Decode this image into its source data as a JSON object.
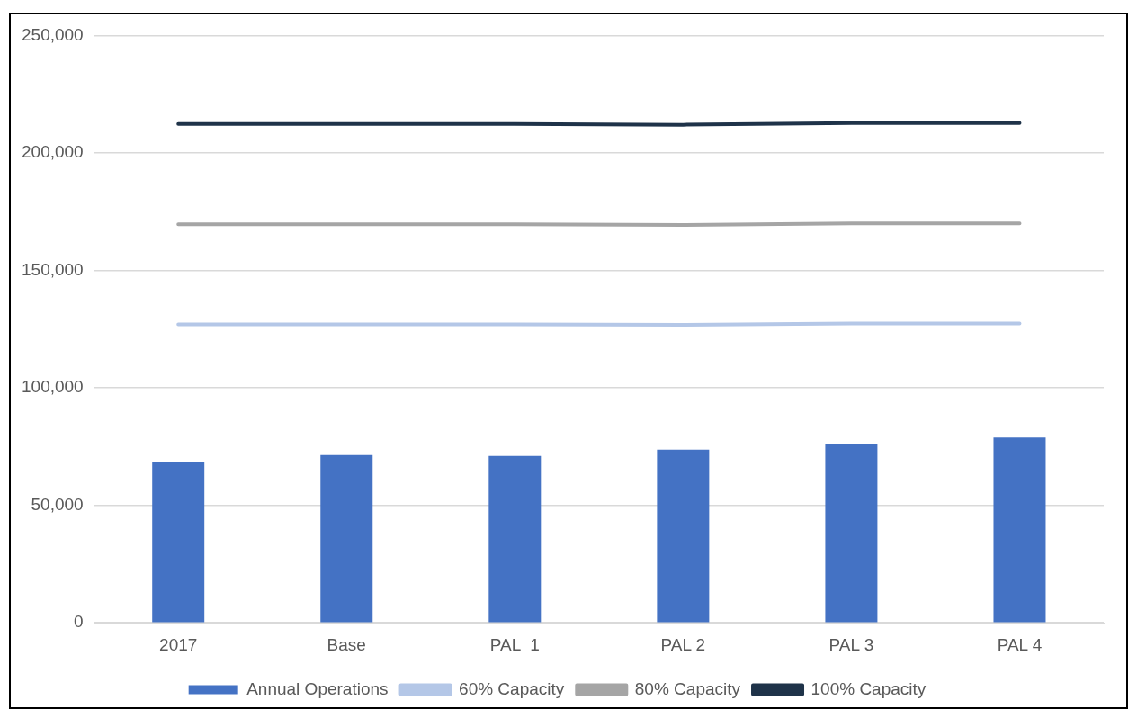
{
  "chart_data": {
    "type": "bar",
    "categories": [
      "2017",
      "Base",
      "PAL  1",
      "PAL 2",
      "PAL 3",
      "PAL 4"
    ],
    "series": [
      {
        "name": "Annual Operations",
        "color": "#4472c4",
        "values": [
          68600,
          71400,
          71000,
          73700,
          76100,
          78900
        ]
      },
      {
        "name": "60% Capacity",
        "type": "line",
        "color": "#b4c7e7",
        "values": [
          127000,
          127000,
          127000,
          126800,
          127400,
          127400
        ]
      },
      {
        "name": "80% Capacity",
        "type": "line",
        "color": "#a5a5a5",
        "values": [
          169600,
          169600,
          169600,
          169300,
          170000,
          170000
        ]
      },
      {
        "name": "100% Capacity",
        "type": "line",
        "color": "#1f3349",
        "values": [
          212300,
          212300,
          212300,
          212000,
          212700,
          212700
        ]
      }
    ],
    "ylim": [
      0,
      250000
    ],
    "yticks": [
      {
        "value": 0,
        "label": "0"
      },
      {
        "value": 50000,
        "label": "50,000"
      },
      {
        "value": 100000,
        "label": "100,000"
      },
      {
        "value": 150000,
        "label": "150,000"
      },
      {
        "value": 200000,
        "label": "200,000"
      },
      {
        "value": 250000,
        "label": "250,000"
      }
    ],
    "grid": "y",
    "legend": "bottom",
    "marker": "none",
    "line_style": "solid"
  }
}
